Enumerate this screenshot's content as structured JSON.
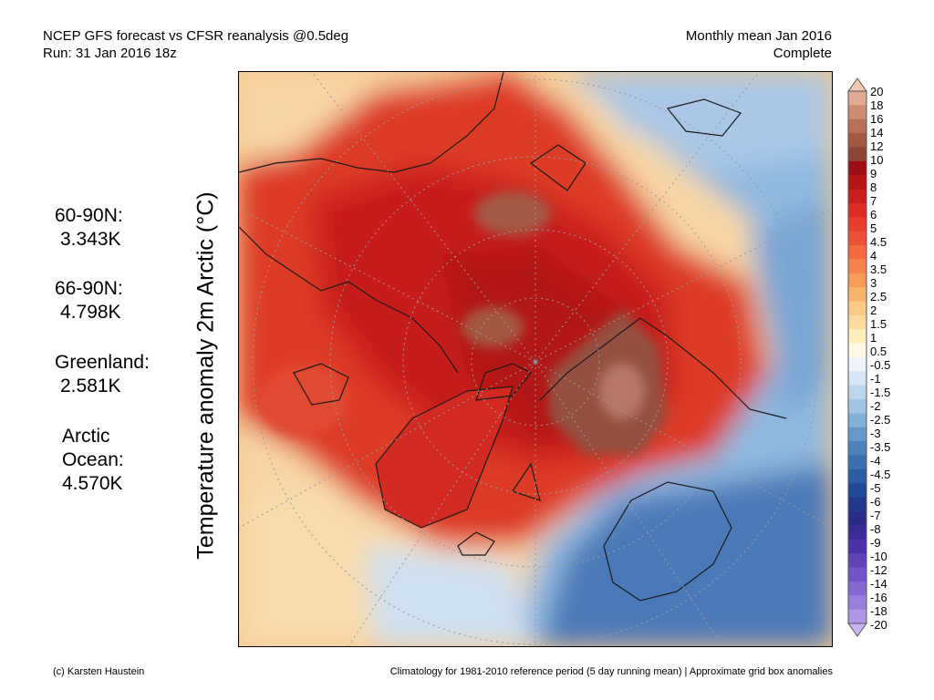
{
  "header": {
    "line1_left": "NCEP GFS forecast vs CFSR reanalysis @0.5deg",
    "line2_left": "Run: 31 Jan 2016 18z",
    "line1_right": "Monthly mean Jan 2016",
    "line2_right": "Complete"
  },
  "axis": {
    "ylabel": "Temperature anomaly 2m Arctic (°C)"
  },
  "stats": [
    {
      "label": "60-90N:",
      "value": "3.343K"
    },
    {
      "label": "66-90N:",
      "value": "4.798K"
    },
    {
      "label": "Greenland:",
      "value": "2.581K"
    },
    {
      "label": "Arctic Ocean:",
      "value": "4.570K"
    }
  ],
  "colorbar": {
    "labels": [
      "20",
      "18",
      "16",
      "14",
      "12",
      "10",
      "9",
      "8",
      "7",
      "6",
      "5",
      "4.5",
      "4",
      "3.5",
      "3",
      "2.5",
      "2",
      "1.5",
      "1",
      "0.5",
      "-0.5",
      "-1",
      "-1.5",
      "-2",
      "-2.5",
      "-3",
      "-3.5",
      "-4",
      "-4.5",
      "-5",
      "-6",
      "-7",
      "-8",
      "-9",
      "-10",
      "-12",
      "-14",
      "-16",
      "-18",
      "-20"
    ],
    "colors": [
      "#f0c8b0",
      "#e0aa90",
      "#cc8c72",
      "#b87058",
      "#a45842",
      "#8e4634",
      "#9c0e14",
      "#b81418",
      "#cc1e1e",
      "#dc2c26",
      "#e83e2e",
      "#ee5236",
      "#f26a3e",
      "#f5824a",
      "#f79c58",
      "#f9b46c",
      "#fbca84",
      "#fcdc9e",
      "#fdeebc",
      "#fff8e4",
      "#eef4fa",
      "#d6e6f4",
      "#bcd6ec",
      "#a0c4e2",
      "#82b0d6",
      "#6698ca",
      "#4e82bc",
      "#3c6eb0",
      "#2c5ca4",
      "#22489a",
      "#223890",
      "#2a2a88",
      "#3a2a96",
      "#4c32a6",
      "#5e42b6",
      "#7254c6",
      "#8668d2",
      "#9a7edc",
      "#b098e6",
      "#c8b4ee"
    ]
  },
  "footer": {
    "left": "(c) Karsten Haustein",
    "right": "Climatology for 1981-2010 reference period (5 day running mean) | Approximate grid box anomalies"
  }
}
